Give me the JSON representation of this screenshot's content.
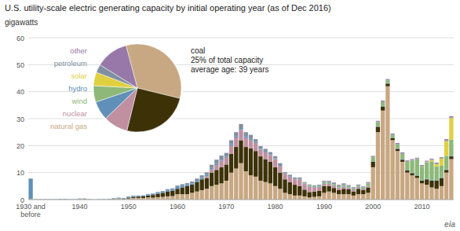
{
  "chart_data": [
    {
      "type": "bar",
      "stacked": true,
      "grid": true,
      "title": "U.S. utility-scale electric generating capacity by initial operating year (as of Dec 2016)",
      "y_label": "gigawatts",
      "categories": [
        "1930 and\nbefore",
        null,
        null,
        null,
        null,
        null,
        null,
        null,
        null,
        null,
        "1940",
        null,
        null,
        null,
        null,
        null,
        null,
        null,
        null,
        null,
        "1950",
        null,
        null,
        null,
        null,
        null,
        null,
        null,
        null,
        null,
        "1960",
        null,
        null,
        null,
        null,
        null,
        null,
        null,
        null,
        null,
        "1970",
        null,
        null,
        null,
        null,
        null,
        null,
        null,
        null,
        null,
        "1980",
        null,
        null,
        null,
        null,
        null,
        null,
        null,
        null,
        null,
        "1990",
        null,
        null,
        null,
        null,
        null,
        null,
        null,
        null,
        null,
        "2000",
        null,
        null,
        null,
        null,
        null,
        null,
        null,
        null,
        null,
        "2010",
        null,
        null,
        null,
        null,
        null,
        null
      ],
      "series": [
        {
          "color": "#c8a882",
          "values": [
            0.3,
            0.05,
            0.05,
            0.05,
            0.05,
            0.1,
            0.05,
            0.1,
            0.05,
            0.05,
            0.2,
            0.1,
            0.1,
            0.05,
            0.05,
            0.1,
            0.1,
            0.2,
            0.3,
            0.15,
            0.4,
            0.6,
            0.6,
            0.6,
            0.8,
            0.7,
            0.9,
            1.0,
            1.2,
            1.3,
            2.0,
            2.0,
            2.0,
            2.5,
            3.0,
            3.5,
            4.0,
            5.0,
            5.5,
            6.0,
            7.0,
            10.0,
            11.5,
            13.5,
            10.5,
            9.0,
            8.5,
            7.0,
            6.5,
            6.0,
            5.0,
            4.0,
            2.5,
            2.0,
            1.5,
            1.5,
            1.2,
            0.8,
            1.0,
            1.2,
            2.5,
            3.0,
            2.5,
            2.0,
            2.0,
            2.0,
            1.5,
            2.0,
            2.0,
            2.5,
            12.0,
            25.0,
            33.0,
            42.0,
            22.0,
            18.0,
            14.0,
            10.0,
            9.0,
            8.0,
            6.0,
            5.5,
            4.5,
            4.0,
            5.0,
            10.0,
            15.0
          ]
        },
        {
          "color": "#3d3108",
          "values": [
            0.0,
            0.0,
            0.0,
            0.0,
            0.0,
            0.0,
            0.0,
            0.0,
            0.0,
            0.0,
            0.0,
            0.1,
            0.0,
            0.0,
            0.0,
            0.0,
            0.0,
            0.1,
            0.1,
            0.1,
            0.3,
            0.4,
            0.5,
            0.6,
            0.7,
            1.0,
            1.2,
            1.5,
            1.8,
            2.0,
            2.0,
            2.5,
            3.0,
            3.0,
            3.5,
            4.0,
            4.0,
            5.0,
            5.5,
            6.0,
            6.0,
            7.0,
            8.0,
            8.5,
            9.0,
            10.0,
            9.5,
            9.0,
            8.5,
            8.0,
            7.0,
            6.0,
            5.0,
            4.5,
            4.0,
            3.5,
            2.5,
            2.0,
            2.0,
            2.0,
            2.5,
            2.0,
            1.8,
            1.5,
            2.0,
            1.8,
            1.5,
            2.0,
            1.5,
            2.0,
            2.0,
            2.0,
            1.5,
            1.0,
            0.8,
            0.8,
            0.8,
            0.8,
            0.8,
            0.8,
            1.0,
            2.0,
            2.5,
            3.0,
            3.0,
            1.0,
            1.0
          ]
        },
        {
          "color": "#c090a0",
          "values": [
            0.0,
            0.0,
            0.0,
            0.0,
            0.0,
            0.0,
            0.0,
            0.0,
            0.0,
            0.0,
            0.0,
            0.0,
            0.0,
            0.0,
            0.0,
            0.0,
            0.0,
            0.0,
            0.0,
            0.0,
            0.0,
            0.0,
            0.0,
            0.0,
            0.0,
            0.0,
            0.0,
            0.0,
            0.0,
            0.0,
            0.0,
            0.0,
            0.0,
            0.0,
            0.0,
            0.0,
            0.6,
            1.2,
            1.8,
            2.4,
            2.5,
            3.0,
            3.5,
            4.0,
            3.5,
            3.0,
            3.0,
            2.5,
            2.5,
            2.5,
            3.0,
            2.5,
            2.0,
            2.0,
            2.0,
            2.5,
            2.0,
            2.0,
            1.5,
            1.5,
            0.8,
            0.8,
            0.8,
            0.8,
            0.8,
            0.5,
            0.5,
            0.5,
            0.3,
            0.3,
            0.0,
            0.0,
            0.0,
            0.0,
            0.0,
            0.0,
            0.0,
            0.0,
            0.0,
            0.0,
            0.0,
            0.0,
            0.0,
            0.0,
            0.0,
            0.0,
            0.0
          ]
        },
        {
          "color": "#6090b8",
          "values": [
            7.5,
            0.1,
            0.1,
            0.1,
            0.1,
            0.1,
            0.2,
            0.2,
            0.1,
            0.1,
            0.2,
            0.2,
            0.1,
            0.0,
            0.1,
            0.1,
            0.2,
            0.2,
            0.3,
            0.3,
            0.4,
            0.4,
            0.3,
            0.3,
            0.4,
            0.4,
            0.5,
            0.5,
            0.6,
            0.6,
            0.7,
            0.7,
            0.6,
            0.5,
            0.5,
            0.5,
            0.5,
            0.5,
            0.5,
            0.4,
            0.3,
            0.5,
            0.5,
            0.5,
            0.5,
            0.5,
            0.4,
            0.3,
            0.3,
            0.3,
            0.3,
            0.3,
            0.2,
            0.2,
            0.2,
            0.2,
            0.2,
            0.2,
            0.2,
            0.2,
            0.2,
            0.2,
            0.2,
            0.2,
            0.2,
            0.2,
            0.2,
            0.2,
            0.2,
            0.2,
            0.2,
            0.2,
            0.2,
            0.2,
            0.2,
            0.2,
            0.2,
            0.2,
            0.2,
            0.2,
            0.2,
            0.2,
            0.2,
            0.2,
            0.2,
            0.2,
            0.2
          ]
        },
        {
          "color": "#8db87a",
          "values": [
            0.0,
            0.0,
            0.0,
            0.0,
            0.0,
            0.0,
            0.0,
            0.0,
            0.0,
            0.0,
            0.0,
            0.0,
            0.0,
            0.0,
            0.0,
            0.0,
            0.0,
            0.0,
            0.0,
            0.0,
            0.0,
            0.0,
            0.0,
            0.0,
            0.0,
            0.0,
            0.0,
            0.0,
            0.0,
            0.0,
            0.0,
            0.0,
            0.0,
            0.0,
            0.0,
            0.0,
            0.0,
            0.0,
            0.0,
            0.0,
            0.0,
            0.0,
            0.0,
            0.0,
            0.0,
            0.0,
            0.0,
            0.0,
            0.0,
            0.0,
            0.0,
            0.0,
            0.0,
            0.0,
            0.0,
            0.0,
            0.3,
            0.3,
            0.3,
            0.3,
            0.5,
            0.5,
            0.5,
            0.5,
            0.5,
            0.5,
            0.5,
            0.5,
            0.5,
            1.0,
            1.5,
            1.5,
            1.5,
            1.0,
            1.0,
            1.5,
            2.0,
            3.0,
            4.5,
            6.0,
            5.0,
            6.0,
            7.0,
            5.0,
            4.5,
            5.0,
            6.0
          ]
        },
        {
          "color": "#e0d040",
          "values": [
            0.0,
            0.0,
            0.0,
            0.0,
            0.0,
            0.0,
            0.0,
            0.0,
            0.0,
            0.0,
            0.0,
            0.0,
            0.0,
            0.0,
            0.0,
            0.0,
            0.0,
            0.0,
            0.0,
            0.0,
            0.0,
            0.0,
            0.0,
            0.0,
            0.0,
            0.0,
            0.0,
            0.0,
            0.0,
            0.0,
            0.0,
            0.0,
            0.0,
            0.0,
            0.0,
            0.0,
            0.0,
            0.0,
            0.0,
            0.0,
            0.0,
            0.0,
            0.0,
            0.0,
            0.0,
            0.0,
            0.0,
            0.0,
            0.0,
            0.0,
            0.0,
            0.0,
            0.0,
            0.0,
            0.0,
            0.0,
            0.0,
            0.0,
            0.0,
            0.0,
            0.0,
            0.0,
            0.0,
            0.0,
            0.0,
            0.0,
            0.0,
            0.0,
            0.0,
            0.0,
            0.0,
            0.0,
            0.0,
            0.0,
            0.0,
            0.0,
            0.0,
            0.0,
            0.0,
            0.0,
            0.1,
            0.2,
            0.5,
            1.0,
            2.5,
            5.5,
            8.0
          ]
        },
        {
          "color": "#8090a0",
          "values": [
            0.0,
            0.0,
            0.0,
            0.0,
            0.0,
            0.0,
            0.0,
            0.0,
            0.0,
            0.0,
            0.0,
            0.0,
            0.0,
            0.0,
            0.0,
            0.0,
            0.0,
            0.0,
            0.0,
            0.0,
            0.1,
            0.1,
            0.1,
            0.1,
            0.2,
            0.2,
            0.2,
            0.2,
            0.3,
            0.3,
            0.5,
            0.5,
            0.5,
            0.7,
            0.8,
            1.0,
            1.0,
            1.2,
            1.5,
            1.5,
            1.5,
            1.5,
            1.5,
            1.5,
            1.5,
            1.5,
            1.0,
            1.0,
            1.0,
            0.8,
            0.8,
            0.7,
            0.5,
            0.5,
            0.5,
            0.5,
            0.3,
            0.3,
            0.3,
            0.3,
            0.3,
            0.3,
            0.3,
            0.3,
            0.3,
            0.2,
            0.2,
            0.2,
            0.2,
            0.2,
            0.2,
            0.2,
            0.2,
            0.2,
            0.2,
            0.2,
            0.2,
            0.2,
            0.2,
            0.2,
            0.2,
            0.2,
            0.2,
            0.2,
            0.2,
            0.2,
            0.2
          ]
        },
        {
          "color": "#9878a8",
          "values": [
            0.0,
            0.0,
            0.0,
            0.0,
            0.0,
            0.0,
            0.0,
            0.0,
            0.0,
            0.0,
            0.0,
            0.0,
            0.0,
            0.0,
            0.0,
            0.0,
            0.0,
            0.0,
            0.0,
            0.0,
            0.0,
            0.0,
            0.0,
            0.0,
            0.0,
            0.0,
            0.0,
            0.0,
            0.0,
            0.0,
            0.0,
            0.0,
            0.0,
            0.0,
            0.0,
            0.0,
            0.0,
            0.0,
            0.0,
            0.0,
            0.0,
            0.0,
            0.0,
            0.0,
            0.0,
            0.0,
            0.0,
            0.0,
            0.0,
            0.0,
            0.0,
            0.0,
            0.0,
            0.0,
            0.0,
            0.0,
            0.0,
            0.0,
            0.0,
            0.0,
            0.2,
            0.2,
            0.2,
            0.2,
            0.2,
            0.2,
            0.2,
            0.2,
            0.2,
            0.3,
            0.3,
            0.3,
            0.3,
            0.3,
            0.3,
            0.3,
            0.3,
            0.3,
            0.3,
            0.3,
            0.3,
            0.3,
            0.3,
            0.3,
            0.3,
            0.5,
            0.5
          ]
        }
      ],
      "ylim": [
        0,
        60
      ],
      "yticks": [
        0,
        10,
        20,
        30,
        40,
        50,
        60
      ],
      "annotations": [
        {
          "text": "coal\n25% of total capacity\naverage age: 39 years",
          "color": "#222222"
        },
        {
          "text": "eia",
          "color": "#888888"
        }
      ]
    },
    {
      "type": "pie",
      "values": [
        33,
        25,
        9,
        7,
        6,
        5,
        3,
        12
      ],
      "colors": [
        "#c8a882",
        "#3d3108",
        "#c090a0",
        "#6090b8",
        "#8db87a",
        "#e0d040",
        "#8090a0",
        "#9878a8"
      ],
      "annotations": [
        {
          "text": "other",
          "color": "#9878a8"
        },
        {
          "text": "petroleum",
          "color": "#8090a0"
        },
        {
          "text": "solar",
          "color": "#e0d040"
        },
        {
          "text": "hydro",
          "color": "#6090b8"
        },
        {
          "text": "wind",
          "color": "#8db87a"
        },
        {
          "text": "nuclear",
          "color": "#c090a0"
        },
        {
          "text": "natural gas",
          "color": "#c8a882"
        }
      ]
    }
  ]
}
